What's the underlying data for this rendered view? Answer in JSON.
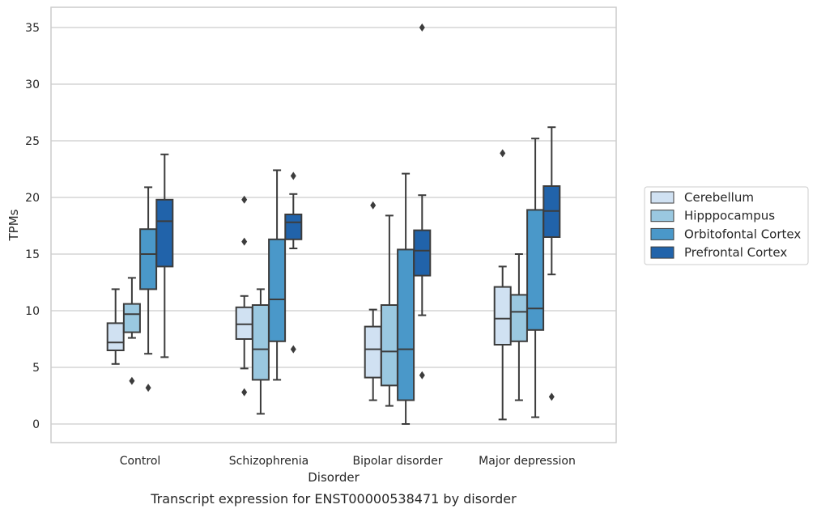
{
  "chart_data": {
    "type": "box",
    "xlabel": "Disorder",
    "ylabel": "TPMs",
    "caption": "Transcript expression for ENST00000538471 by disorder",
    "ylim": [
      -1.7,
      36.8
    ],
    "yticks": [
      0,
      5,
      10,
      15,
      20,
      25,
      30,
      35
    ],
    "categories": [
      "Control",
      "Schizophrenia",
      "Bipolar disorder",
      "Major depression"
    ],
    "grid": "horizontal",
    "legend_position": "right",
    "series": [
      {
        "name": "Cerebellum",
        "color": "#d0e1f2",
        "boxes": [
          {
            "whisker_low": 5.3,
            "q1": 6.5,
            "median": 7.2,
            "q3": 8.9,
            "whisker_high": 11.9,
            "outliers": []
          },
          {
            "whisker_low": 4.9,
            "q1": 7.5,
            "median": 8.8,
            "q3": 10.3,
            "whisker_high": 11.3,
            "outliers": [
              19.8,
              16.1,
              2.8
            ]
          },
          {
            "whisker_low": 2.1,
            "q1": 4.1,
            "median": 6.6,
            "q3": 8.6,
            "whisker_high": 10.1,
            "outliers": [
              19.3
            ]
          },
          {
            "whisker_low": 0.4,
            "q1": 7.0,
            "median": 9.3,
            "q3": 12.1,
            "whisker_high": 13.9,
            "outliers": [
              23.9
            ]
          }
        ]
      },
      {
        "name": "Hipppocampus",
        "color": "#9ac8e0",
        "boxes": [
          {
            "whisker_low": 7.6,
            "q1": 8.1,
            "median": 9.7,
            "q3": 10.6,
            "whisker_high": 12.9,
            "outliers": [
              3.8
            ]
          },
          {
            "whisker_low": 0.9,
            "q1": 3.9,
            "median": 6.6,
            "q3": 10.5,
            "whisker_high": 11.9,
            "outliers": []
          },
          {
            "whisker_low": 1.6,
            "q1": 3.4,
            "median": 6.4,
            "q3": 10.5,
            "whisker_high": 18.4,
            "outliers": []
          },
          {
            "whisker_low": 2.1,
            "q1": 7.3,
            "median": 9.9,
            "q3": 11.4,
            "whisker_high": 15.0,
            "outliers": []
          }
        ]
      },
      {
        "name": "Orbitofontal Cortex",
        "color": "#4a98c9",
        "boxes": [
          {
            "whisker_low": 6.2,
            "q1": 11.9,
            "median": 15.0,
            "q3": 17.2,
            "whisker_high": 20.9,
            "outliers": [
              3.2
            ]
          },
          {
            "whisker_low": 3.9,
            "q1": 7.3,
            "median": 11.0,
            "q3": 16.3,
            "whisker_high": 22.4,
            "outliers": []
          },
          {
            "whisker_low": 0.0,
            "q1": 2.1,
            "median": 6.6,
            "q3": 15.4,
            "whisker_high": 22.1,
            "outliers": []
          },
          {
            "whisker_low": 0.6,
            "q1": 8.3,
            "median": 10.2,
            "q3": 18.9,
            "whisker_high": 25.2,
            "outliers": []
          }
        ]
      },
      {
        "name": "Prefrontal Cortex",
        "color": "#2163aa",
        "boxes": [
          {
            "whisker_low": 5.9,
            "q1": 13.9,
            "median": 17.9,
            "q3": 19.8,
            "whisker_high": 23.8,
            "outliers": []
          },
          {
            "whisker_low": 15.5,
            "q1": 16.3,
            "median": 17.8,
            "q3": 18.5,
            "whisker_high": 20.3,
            "outliers": [
              21.9,
              6.6
            ]
          },
          {
            "whisker_low": 9.6,
            "q1": 13.1,
            "median": 15.3,
            "q3": 17.1,
            "whisker_high": 20.2,
            "outliers": [
              35.0,
              4.3
            ]
          },
          {
            "whisker_low": 13.2,
            "q1": 16.5,
            "median": 18.8,
            "q3": 21.0,
            "whisker_high": 26.2,
            "outliers": [
              2.4
            ]
          }
        ]
      }
    ],
    "colors": {
      "grid": "#cccccc",
      "frame": "#cccccc",
      "line": "#3c3c3c",
      "text": "#262626"
    }
  }
}
